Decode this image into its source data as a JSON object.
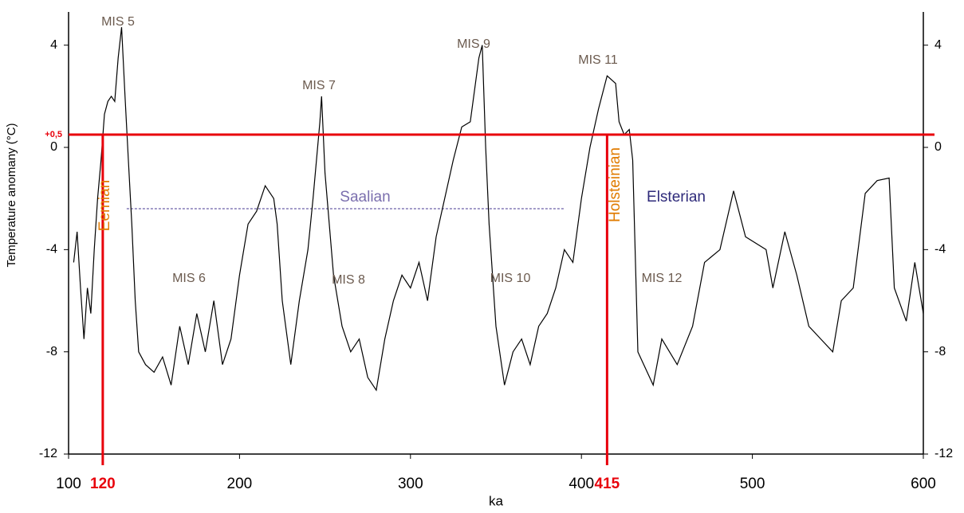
{
  "chart_data": {
    "type": "line",
    "xlabel": "ka",
    "ylabel": "Temperature anomany (°C)",
    "xlim": [
      100,
      600
    ],
    "xticks": [
      100,
      200,
      300,
      400,
      500,
      600
    ],
    "ylim": [
      -12,
      5.3
    ],
    "yticks": [
      4,
      0,
      -4,
      -8,
      -12
    ],
    "color": "#000000",
    "x": [
      103,
      105,
      107,
      109,
      111,
      113,
      115,
      117,
      119,
      121,
      123,
      125,
      127,
      129,
      131,
      133,
      135,
      137,
      139,
      141,
      145,
      150,
      155,
      160,
      165,
      170,
      175,
      180,
      185,
      190,
      195,
      200,
      205,
      210,
      215,
      220,
      222,
      225,
      230,
      235,
      240,
      243,
      245,
      247,
      248,
      250,
      255,
      260,
      265,
      270,
      275,
      280,
      285,
      290,
      295,
      300,
      305,
      310,
      315,
      320,
      325,
      330,
      335,
      340,
      342,
      344,
      346,
      350,
      355,
      360,
      365,
      370,
      375,
      380,
      385,
      390,
      395,
      400,
      405,
      410,
      415,
      420,
      422,
      425,
      428,
      430,
      433,
      442,
      447,
      456,
      465,
      472,
      481,
      489,
      496,
      508,
      512,
      519,
      526,
      533,
      540,
      547,
      552,
      559,
      566,
      573,
      580,
      583,
      590,
      595,
      600
    ],
    "values": [
      -4.5,
      -3.3,
      -5.5,
      -7.5,
      -5.5,
      -6.5,
      -4,
      -2,
      -0.5,
      1.3,
      1.8,
      2,
      1.8,
      3.5,
      4.7,
      2,
      -0.5,
      -3,
      -6,
      -8,
      -8.5,
      -8.8,
      -8.2,
      -9.3,
      -7,
      -8.5,
      -6.5,
      -8,
      -6,
      -8.5,
      -7.5,
      -5,
      -3,
      -2.5,
      -1.5,
      -2,
      -3,
      -6,
      -8.5,
      -6,
      -4,
      -2,
      -0.5,
      1,
      2,
      -1,
      -5,
      -7,
      -8,
      -7.5,
      -9,
      -9.5,
      -7.5,
      -6,
      -5,
      -5.5,
      -4.5,
      -6,
      -3.5,
      -2,
      -0.5,
      0.8,
      1,
      3.5,
      4,
      0,
      -3,
      -7,
      -9.3,
      -8,
      -7.5,
      -8.5,
      -7,
      -6.5,
      -5.5,
      -4,
      -4.5,
      -2,
      0,
      1.5,
      2.8,
      2.5,
      1,
      0.5,
      0.7,
      -0.5,
      -8,
      -9.3,
      -7.5,
      -8.5,
      -7,
      -4.5,
      -4,
      -1.7,
      -3.5,
      -4,
      -5.5,
      -3.3,
      -5,
      -7,
      -7.5,
      -8,
      -6,
      -5.5,
      -1.8,
      -1.3,
      -1.2,
      -5.5,
      -6.8,
      -4.5,
      -6.5
    ],
    "reference_lines": {
      "color": "#e8000b",
      "horizontal": {
        "value": 0.5,
        "label": "+0,5"
      },
      "vertical": [
        {
          "value": 120,
          "label": "120"
        },
        {
          "value": 415,
          "label": "415"
        }
      ]
    },
    "dashed_line": {
      "y": -2.4,
      "x": [
        134,
        390
      ],
      "color": "#6a5fa8"
    },
    "annotations": [
      "MIS 5",
      "MIS 7",
      "MIS 9",
      "MIS 11",
      "MIS 6",
      "MIS 8",
      "MIS 10",
      "MIS 12",
      "Saalian",
      "Elsterian",
      "Eemian",
      "Holsteinian"
    ]
  }
}
